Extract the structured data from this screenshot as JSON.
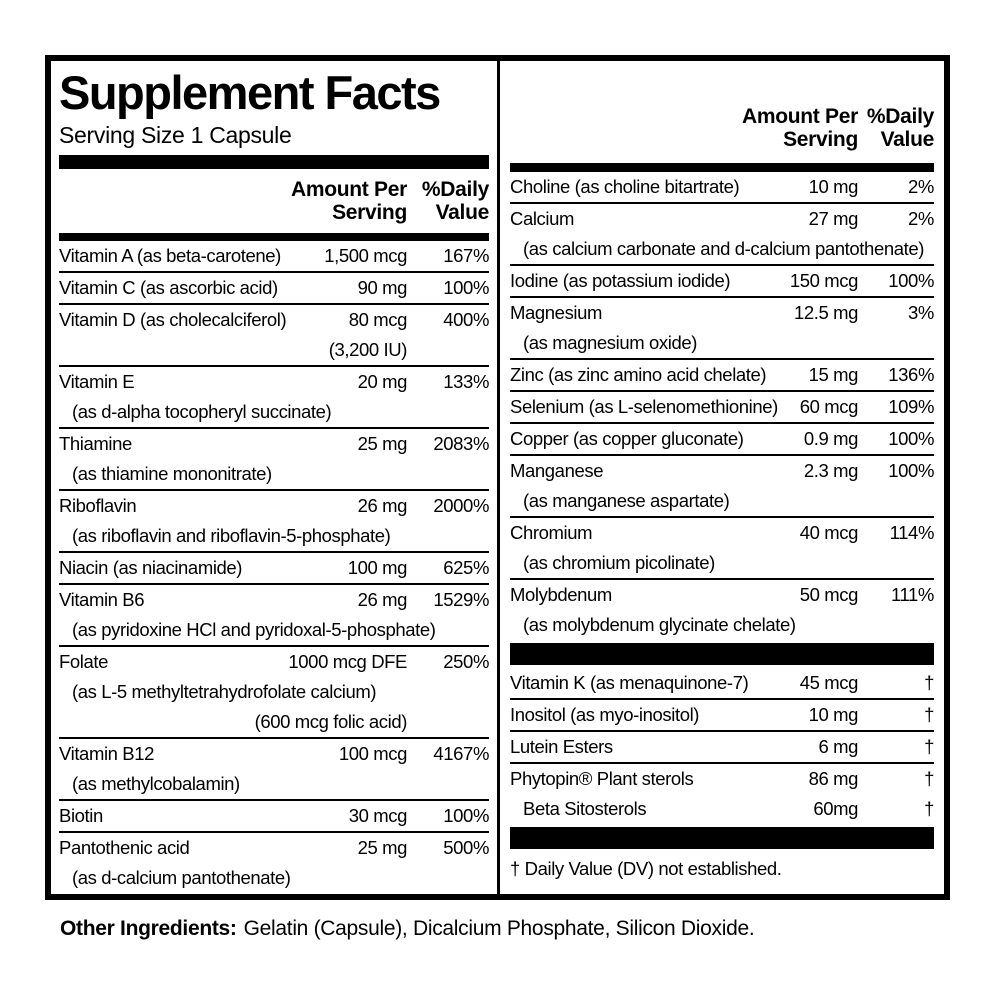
{
  "colors": {
    "ink": "#000000",
    "paper": "#ffffff"
  },
  "label": {
    "title": "Supplement Facts",
    "serving_size": "Serving Size 1 Capsule",
    "column_header": {
      "amount_line1": "Amount Per",
      "amount_line2": "Serving",
      "dv_line1": "%Daily",
      "dv_line2": "Value"
    },
    "left_rows": [
      {
        "name": "Vitamin A (as beta-carotene)",
        "amount": "1,500 mcg",
        "dv": "167%"
      },
      {
        "name": "Vitamin C (as ascorbic acid)",
        "amount": "90 mg",
        "dv": "100%"
      },
      {
        "name": "Vitamin D (as cholecalciferol)",
        "amount": "80 mcg",
        "dv": "400%",
        "amount_sub": "(3,200 IU)"
      },
      {
        "name": "Vitamin E",
        "amount": "20 mg",
        "dv": "133%",
        "sub": "(as d-alpha tocopheryl succinate)"
      },
      {
        "name": "Thiamine",
        "amount": "25 mg",
        "dv": "2083%",
        "sub": "(as thiamine mononitrate)"
      },
      {
        "name": "Riboflavin",
        "amount": "26 mg",
        "dv": "2000%",
        "sub": "(as riboflavin and riboflavin-5-phosphate)"
      },
      {
        "name": "Niacin (as niacinamide)",
        "amount": "100 mg",
        "dv": "625%"
      },
      {
        "name": "Vitamin B6",
        "amount": "26 mg",
        "dv": "1529%",
        "sub": "(as pyridoxine HCl and pyridoxal-5-phosphate)"
      },
      {
        "name": "Folate",
        "amount": "1000 mcg DFE",
        "dv": "250%",
        "sub": "(as L-5 methyltetrahydrofolate calcium)",
        "amount_sub": "(600 mcg folic acid)"
      },
      {
        "name": "Vitamin B12",
        "amount": "100 mcg",
        "dv": "4167%",
        "sub": "(as methylcobalamin)"
      },
      {
        "name": "Biotin",
        "amount": "30 mcg",
        "dv": "100%"
      },
      {
        "name": "Pantothenic acid",
        "amount": "25 mg",
        "dv": "500%",
        "sub": "(as d-calcium pantothenate)"
      }
    ],
    "right_rows": [
      {
        "name": "Choline (as choline bitartrate)",
        "amount": "10 mg",
        "dv": "2%"
      },
      {
        "name": "Calcium",
        "amount": "27 mg",
        "dv": "2%",
        "sub": "(as calcium carbonate and d-calcium pantothenate)"
      },
      {
        "name": "Iodine (as potassium iodide)",
        "amount": "150 mcg",
        "dv": "100%"
      },
      {
        "name": "Magnesium",
        "amount": "12.5 mg",
        "dv": "3%",
        "sub": "(as magnesium oxide)"
      },
      {
        "name": "Zinc (as zinc amino acid chelate)",
        "amount": "15 mg",
        "dv": "136%"
      },
      {
        "name": "Selenium (as L-selenomethionine)",
        "amount": "60 mcg",
        "dv": "109%"
      },
      {
        "name": "Copper (as copper gluconate)",
        "amount": "0.9 mg",
        "dv": "100%"
      },
      {
        "name": "Manganese",
        "amount": "2.3 mg",
        "dv": "100%",
        "sub": "(as manganese aspartate)"
      },
      {
        "name": "Chromium",
        "amount": "40 mcg",
        "dv": "114%",
        "sub": "(as chromium picolinate)"
      },
      {
        "name": "Molybdenum",
        "amount": "50 mcg",
        "dv": "111%",
        "sub": "(as molybdenum glycinate chelate)"
      },
      {
        "type": "bar"
      },
      {
        "name": "Vitamin K (as menaquinone-7)",
        "amount": "45 mcg",
        "dv": "†"
      },
      {
        "name": "Inositol (as myo-inositol)",
        "amount": "10 mg",
        "dv": "†"
      },
      {
        "name": "Lutein Esters",
        "amount": "6 mg",
        "dv": "†"
      },
      {
        "name": "Phytopin® Plant sterols",
        "amount": "86 mg",
        "dv": "†",
        "subrow": {
          "name": "Beta Sitosterols",
          "amount": "60mg",
          "dv": "†"
        }
      },
      {
        "type": "bar"
      }
    ],
    "footnote": "† Daily Value (DV) not established.",
    "other_ingredients_label": "Other Ingredients:",
    "other_ingredients_text": "Gelatin (Capsule), Dicalcium Phosphate, Silicon Dioxide."
  }
}
